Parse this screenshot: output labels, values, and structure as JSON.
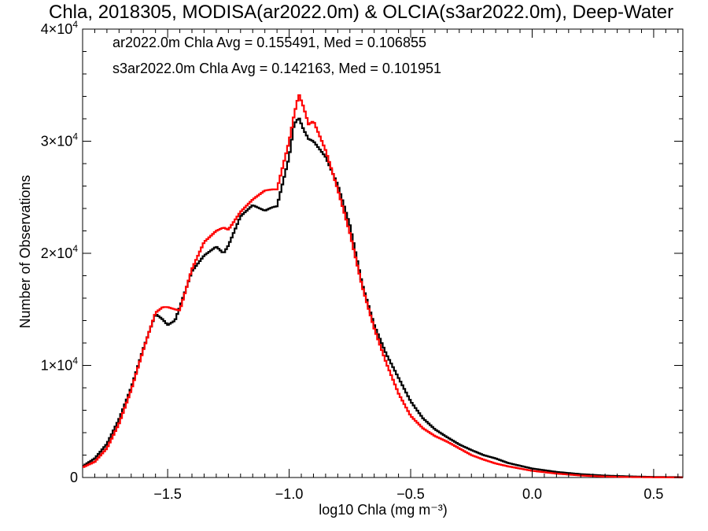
{
  "chart_data": {
    "type": "line",
    "title": "Chla, 2018305, MODISA(ar2022.0m) & OLCIA(s3ar2022.0m), Deep-Water",
    "xlabel": "log10 Chla (mg m⁻³)",
    "ylabel": "Number of Observations",
    "xlim": [
      -1.85,
      0.62
    ],
    "ylim": [
      0,
      40000
    ],
    "grid": false,
    "x_ticks": [
      -1.5,
      -1.0,
      -0.5,
      0.0,
      0.5
    ],
    "x_tick_labels": [
      "−1.5",
      "−1.0",
      "−0.5",
      "0.0",
      "0.5"
    ],
    "y_ticks": [
      0,
      10000,
      20000,
      30000,
      40000
    ],
    "y_tick_labels": [
      {
        "value": 0,
        "mant": "0",
        "exp": ""
      },
      {
        "value": 10000,
        "mant": "1×10",
        "exp": "4"
      },
      {
        "value": 20000,
        "mant": "2×10",
        "exp": "4"
      },
      {
        "value": 30000,
        "mant": "3×10",
        "exp": "4"
      },
      {
        "value": 40000,
        "mant": "4×10",
        "exp": "4"
      }
    ],
    "annotations": [
      {
        "text": "ar2022.0m Chla Avg = 0.155491, Med = 0.106855",
        "color": "#000000"
      },
      {
        "text": "s3ar2022.0m Chla Avg = 0.142163, Med = 0.101951",
        "color": "#ff0000"
      }
    ],
    "series": [
      {
        "color": "#000000",
        "x": [
          -1.85,
          -1.8,
          -1.75,
          -1.7,
          -1.65,
          -1.6,
          -1.55,
          -1.52,
          -1.5,
          -1.47,
          -1.45,
          -1.4,
          -1.35,
          -1.3,
          -1.27,
          -1.25,
          -1.2,
          -1.15,
          -1.1,
          -1.07,
          -1.05,
          -1.0,
          -0.98,
          -0.96,
          -0.94,
          -0.92,
          -0.9,
          -0.85,
          -0.8,
          -0.75,
          -0.7,
          -0.65,
          -0.6,
          -0.55,
          -0.5,
          -0.45,
          -0.4,
          -0.35,
          -0.3,
          -0.25,
          -0.2,
          -0.15,
          -0.1,
          0.0,
          0.1,
          0.2,
          0.3,
          0.4,
          0.5,
          0.62
        ],
        "y": [
          1000,
          1700,
          3000,
          5200,
          8000,
          11500,
          14600,
          14100,
          13600,
          14000,
          15200,
          18400,
          19800,
          20600,
          20000,
          20700,
          23300,
          24300,
          23800,
          24100,
          24200,
          28600,
          31500,
          32100,
          31000,
          30200,
          30000,
          28600,
          26100,
          22500,
          17300,
          13600,
          11000,
          8900,
          6800,
          5300,
          4300,
          3600,
          2950,
          2450,
          2000,
          1700,
          1300,
          800,
          500,
          300,
          170,
          100,
          50,
          30
        ]
      },
      {
        "color": "#ff0000",
        "x": [
          -1.85,
          -1.8,
          -1.75,
          -1.7,
          -1.65,
          -1.6,
          -1.55,
          -1.52,
          -1.5,
          -1.47,
          -1.45,
          -1.4,
          -1.35,
          -1.3,
          -1.27,
          -1.25,
          -1.2,
          -1.15,
          -1.1,
          -1.07,
          -1.05,
          -1.0,
          -0.98,
          -0.96,
          -0.94,
          -0.92,
          -0.9,
          -0.85,
          -0.8,
          -0.75,
          -0.7,
          -0.65,
          -0.6,
          -0.55,
          -0.5,
          -0.45,
          -0.4,
          -0.35,
          -0.3,
          -0.25,
          -0.2,
          -0.15,
          -0.1,
          0.0,
          0.1,
          0.2,
          0.3,
          0.4,
          0.5,
          0.62
        ],
        "y": [
          900,
          1400,
          2600,
          4800,
          7800,
          11400,
          14700,
          15200,
          15200,
          15000,
          14900,
          18600,
          21000,
          22000,
          22300,
          22100,
          23700,
          24800,
          25600,
          25700,
          25700,
          30000,
          32300,
          34200,
          33000,
          31500,
          31800,
          29200,
          25700,
          21800,
          17100,
          13300,
          10200,
          7500,
          5500,
          4400,
          3700,
          3200,
          2600,
          2000,
          1600,
          1250,
          1000,
          600,
          350,
          180,
          80,
          40,
          20,
          10
        ]
      }
    ]
  }
}
